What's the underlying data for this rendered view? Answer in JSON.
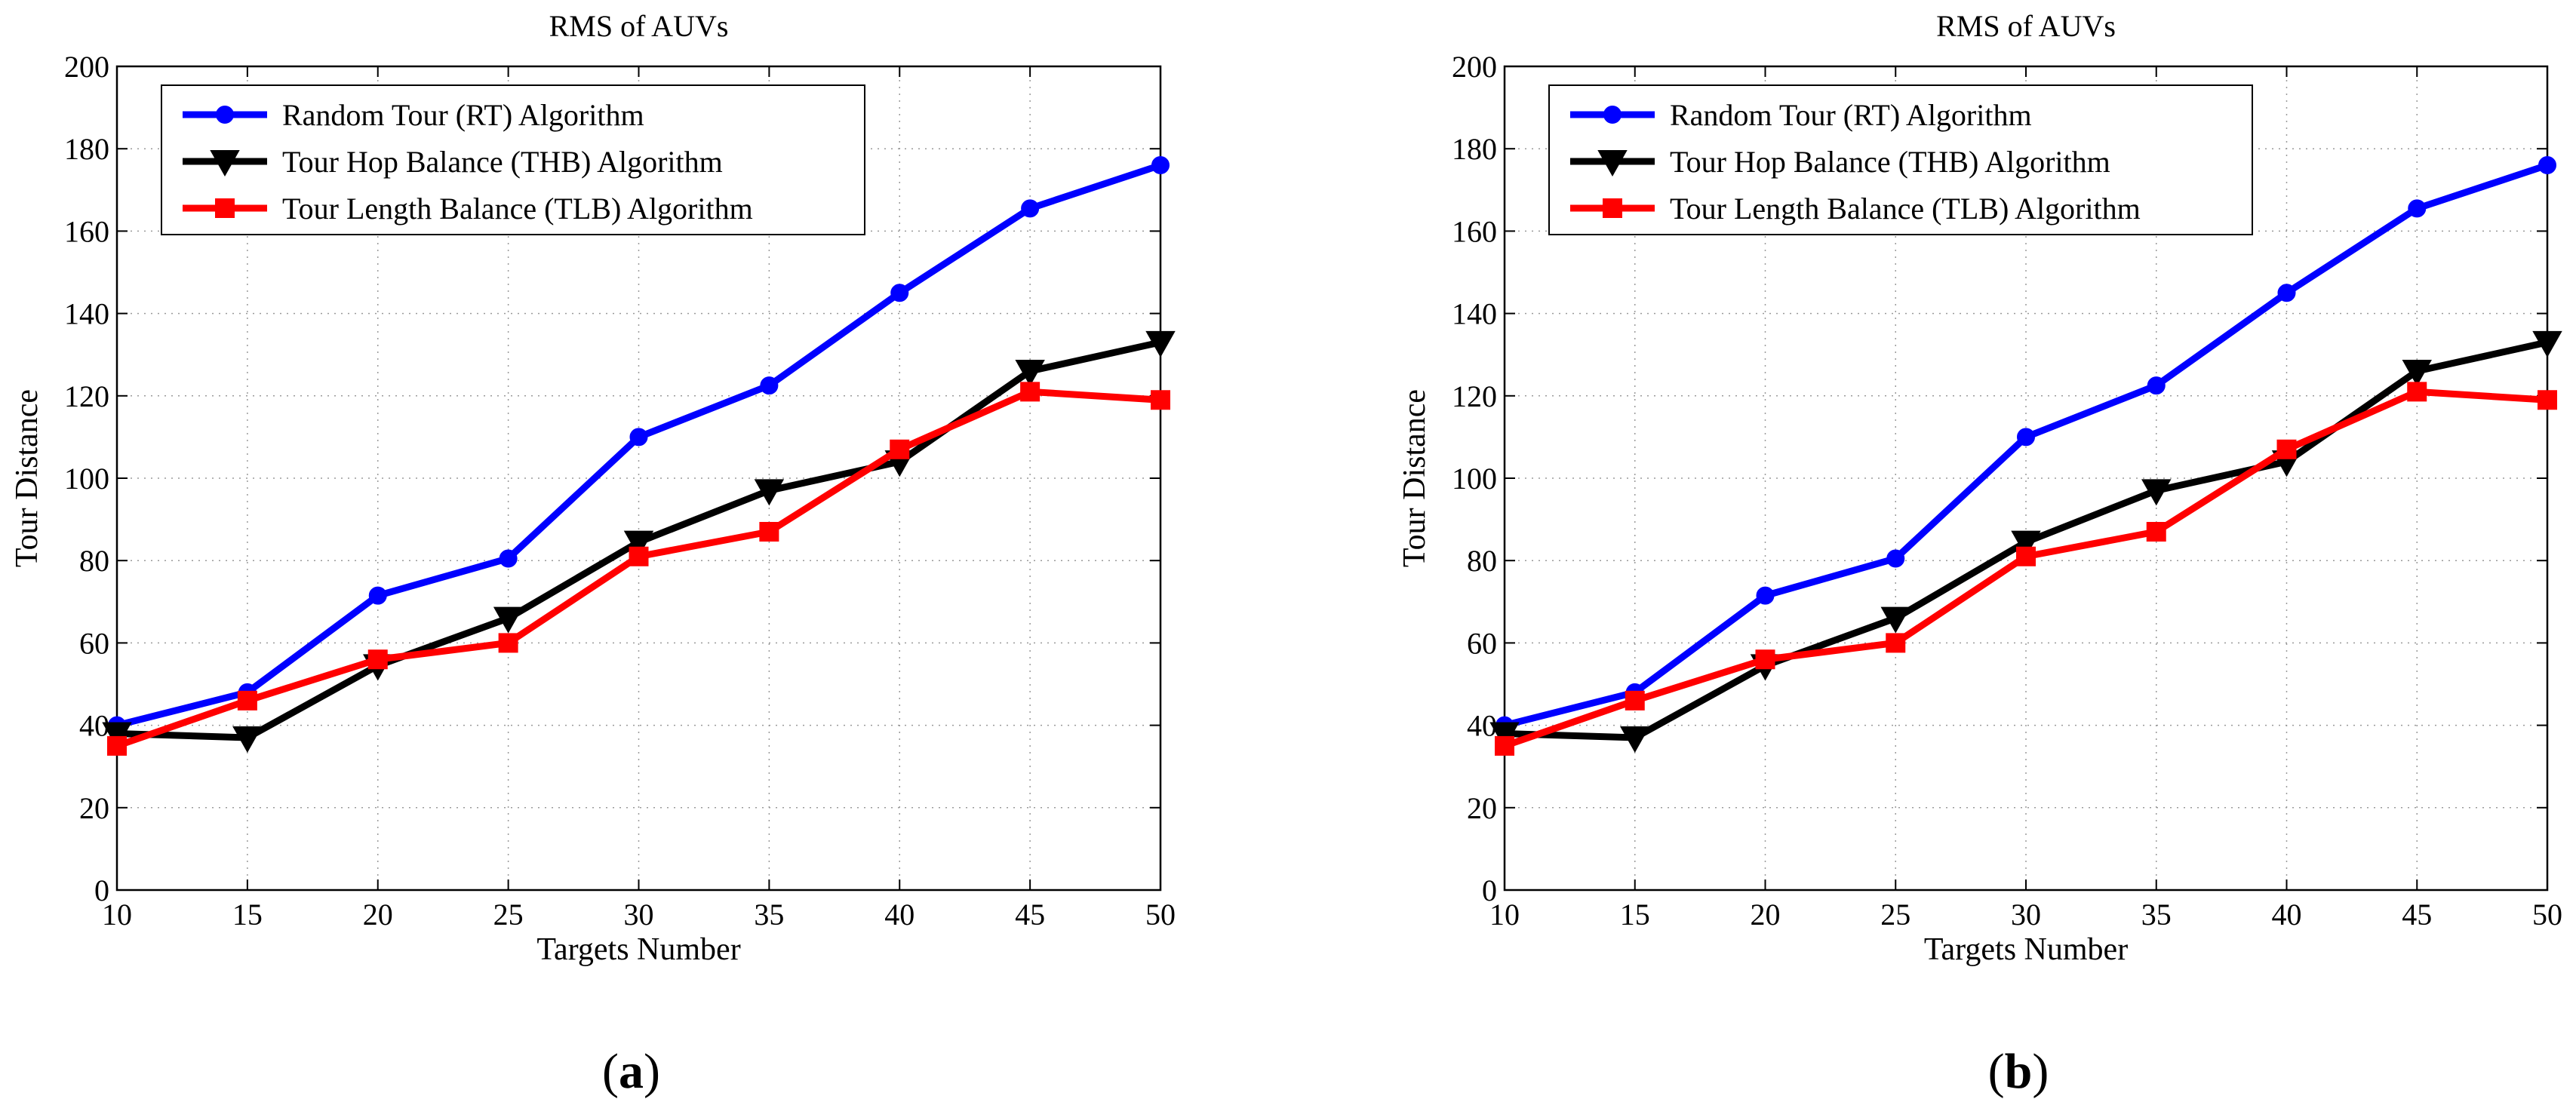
{
  "colors": {
    "rt": "#0000ff",
    "thb": "#000000",
    "tlb": "#ff0000"
  },
  "chart_data": [
    {
      "type": "line",
      "panel_label_prefix": "(",
      "panel_label_letter": "a",
      "panel_label_suffix": ")",
      "title": "RMS of AUVs",
      "xlabel": "Targets Number",
      "ylabel": "Tour Distance",
      "xlim": [
        10,
        50
      ],
      "ylim": [
        0,
        200
      ],
      "xticks": [
        10,
        15,
        20,
        25,
        30,
        35,
        40,
        45,
        50
      ],
      "yticks": [
        0,
        20,
        40,
        60,
        80,
        100,
        120,
        140,
        160,
        180,
        200
      ],
      "grid": true,
      "legend_position": "top-left",
      "series": [
        {
          "name": "Random Tour (RT) Algorithm",
          "marker": "circle",
          "color_key": "rt",
          "x": [
            10,
            15,
            20,
            25,
            30,
            35,
            40,
            45,
            50
          ],
          "values": [
            40,
            48,
            71.5,
            80.5,
            110,
            122.5,
            145,
            165.5,
            176
          ]
        },
        {
          "name": "Tour Hop Balance (THB) Algorithm",
          "marker": "triangle-down",
          "color_key": "thb",
          "x": [
            10,
            15,
            20,
            25,
            30,
            35,
            40,
            45,
            50
          ],
          "values": [
            38,
            37,
            54.5,
            66,
            84.5,
            97,
            104,
            126,
            133
          ]
        },
        {
          "name": "Tour Length Balance (TLB) Algorithm",
          "marker": "square",
          "color_key": "tlb",
          "x": [
            10,
            15,
            20,
            25,
            30,
            35,
            40,
            45,
            50
          ],
          "values": [
            35,
            46,
            56,
            60,
            81,
            87,
            107,
            121,
            119
          ]
        }
      ]
    },
    {
      "type": "line",
      "panel_label_prefix": "(",
      "panel_label_letter": "b",
      "panel_label_suffix": ")",
      "title": "RMS of AUVs",
      "xlabel": "Targets Number",
      "ylabel": "Tour Distance",
      "xlim": [
        10,
        50
      ],
      "ylim": [
        0,
        200
      ],
      "xticks": [
        10,
        15,
        20,
        25,
        30,
        35,
        40,
        45,
        50
      ],
      "yticks": [
        0,
        20,
        40,
        60,
        80,
        100,
        120,
        140,
        160,
        180,
        200
      ],
      "grid": true,
      "legend_position": "top-left",
      "series": [
        {
          "name": "Random Tour (RT) Algorithm",
          "marker": "circle",
          "color_key": "rt",
          "x": [
            10,
            15,
            20,
            25,
            30,
            35,
            40,
            45,
            50
          ],
          "values": [
            40,
            48,
            71.5,
            80.5,
            110,
            122.5,
            145,
            165.5,
            176
          ]
        },
        {
          "name": "Tour Hop Balance (THB) Algorithm",
          "marker": "triangle-down",
          "color_key": "thb",
          "x": [
            10,
            15,
            20,
            25,
            30,
            35,
            40,
            45,
            50
          ],
          "values": [
            38,
            37,
            54.5,
            66,
            84.5,
            97,
            104,
            126,
            133
          ]
        },
        {
          "name": "Tour Length Balance (TLB) Algorithm",
          "marker": "square",
          "color_key": "tlb",
          "x": [
            10,
            15,
            20,
            25,
            30,
            35,
            40,
            45,
            50
          ],
          "values": [
            35,
            46,
            56,
            60,
            81,
            87,
            107,
            121,
            119
          ]
        }
      ]
    }
  ]
}
